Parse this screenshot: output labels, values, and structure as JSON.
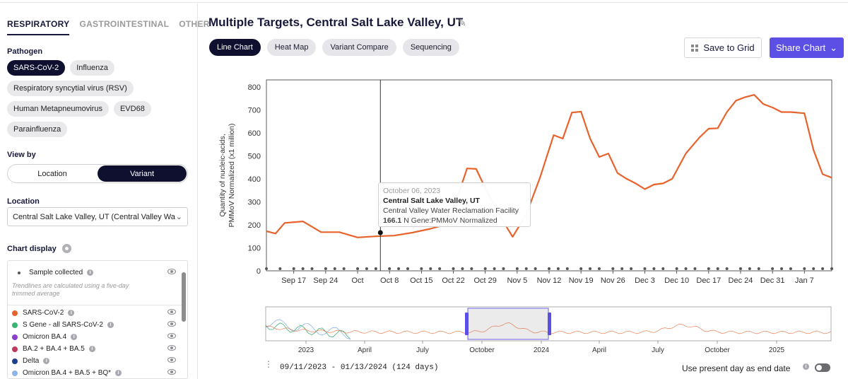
{
  "sidebar": {
    "category_tabs": [
      "RESPIRATORY",
      "GASTROINTESTINAL",
      "OTHER"
    ],
    "pathogen_label": "Pathogen",
    "pathogens": [
      "SARS-CoV-2",
      "Influenza",
      "Respiratory syncytial virus (RSV)",
      "Human Metapneumovirus",
      "EVD68",
      "Parainfluenza"
    ],
    "selected_pathogen": "SARS-CoV-2",
    "viewby_label": "View by",
    "viewby_options": [
      "Location",
      "Variant"
    ],
    "viewby_selected": "Variant",
    "location_label": "Location",
    "location_value": "Central Salt Lake Valley, UT (Central Valley Wa",
    "chart_display_label": "Chart display",
    "sample_collected": "Sample collected",
    "trendline_note": "Trendlines are calculated using a five-day trimmed average",
    "legend": [
      {
        "label": "SARS-CoV-2",
        "color": "#e8622c"
      },
      {
        "label": "S Gene - all SARS-CoV-2",
        "color": "#3cb371"
      },
      {
        "label": "Omicron BA.4",
        "color": "#8a3fd1"
      },
      {
        "label": "BA.2 + BA.4 + BA.5",
        "color": "#c0395a"
      },
      {
        "label": "Delta",
        "color": "#1f3f8c"
      },
      {
        "label": "Omicron BA.4 + BA.5 + BQ*",
        "color": "#8fb4e8"
      }
    ]
  },
  "main": {
    "title": "Multiple Targets, Central Salt Lake Valley, UT",
    "chart_tabs": [
      "Line Chart",
      "Heat Map",
      "Variant Compare",
      "Sequencing"
    ],
    "active_tab": "Line Chart",
    "save_label": "Save to Grid",
    "share_label": "Share Chart",
    "tooltip": {
      "date": "October 06, 2023",
      "location": "Central Salt Lake Valley, UT",
      "facility": "Central Valley Water Reclamation Facility",
      "value": "166.1",
      "unit": "N Gene:PMMoV Normalized"
    },
    "range_text": "09/11/2023 - 01/13/2024 (124 days)",
    "present_day_label": "Use present day as end date",
    "mini_ticks": [
      "2023",
      "April",
      "July",
      "October",
      "2024",
      "April",
      "July",
      "October",
      "2025"
    ]
  },
  "chart_data": {
    "type": "line",
    "ylabel": "Quantity of nucleic-acids, PMMoV Normalized (x1 million)",
    "ylim": [
      0,
      830
    ],
    "yticks": [
      0,
      100,
      200,
      300,
      400,
      500,
      600,
      700,
      800
    ],
    "xticks": [
      "Sep 17",
      "Sep 24",
      "Oct",
      "Oct 8",
      "Oct 15",
      "Oct 22",
      "Oct 29",
      "Nov 5",
      "Nov 12",
      "Nov 19",
      "Nov 26",
      "Dec 3",
      "Dec 10",
      "Dec 17",
      "Dec 24",
      "Dec 31",
      "Jan 7"
    ],
    "xrange_days": [
      0,
      124
    ],
    "xtick_days": [
      6,
      13,
      20,
      27,
      34,
      41,
      48,
      55,
      62,
      69,
      76,
      83,
      90,
      97,
      104,
      111,
      118
    ],
    "series": [
      {
        "name": "SARS-CoV-2",
        "color": "#e8622c",
        "days": [
          0,
          2,
          4,
          8,
          12,
          16,
          20,
          24,
          28,
          32,
          36,
          40,
          44,
          46,
          48,
          51,
          54,
          57,
          60,
          63,
          65,
          67,
          69,
          71,
          73,
          75,
          77,
          79,
          81,
          83,
          85,
          87,
          89,
          92,
          95,
          97,
          99,
          101,
          103,
          105,
          107,
          109,
          111,
          113,
          115,
          118,
          120,
          122,
          124
        ],
        "values": [
          172,
          162,
          208,
          215,
          168,
          168,
          145,
          150,
          153,
          166,
          183,
          205,
          445,
          443,
          360,
          245,
          148,
          245,
          405,
          590,
          575,
          688,
          692,
          575,
          495,
          510,
          425,
          400,
          380,
          355,
          375,
          380,
          400,
          510,
          580,
          618,
          620,
          690,
          740,
          755,
          765,
          725,
          710,
          690,
          690,
          685,
          525,
          420,
          405
        ]
      }
    ],
    "sample_days": [
      0,
      3,
      6,
      8,
      10,
      13,
      15,
      17,
      20,
      22,
      24,
      27,
      29,
      31,
      34,
      36,
      38,
      41,
      43,
      45,
      48,
      50,
      52,
      55,
      57,
      59,
      62,
      64,
      66,
      69,
      71,
      73,
      76,
      78,
      80,
      83,
      85,
      87,
      90,
      92,
      94,
      97,
      99,
      101,
      104,
      106,
      108,
      111,
      113,
      115,
      118,
      120,
      122,
      124
    ],
    "highlight": {
      "day": 25,
      "value": 166.1
    }
  }
}
